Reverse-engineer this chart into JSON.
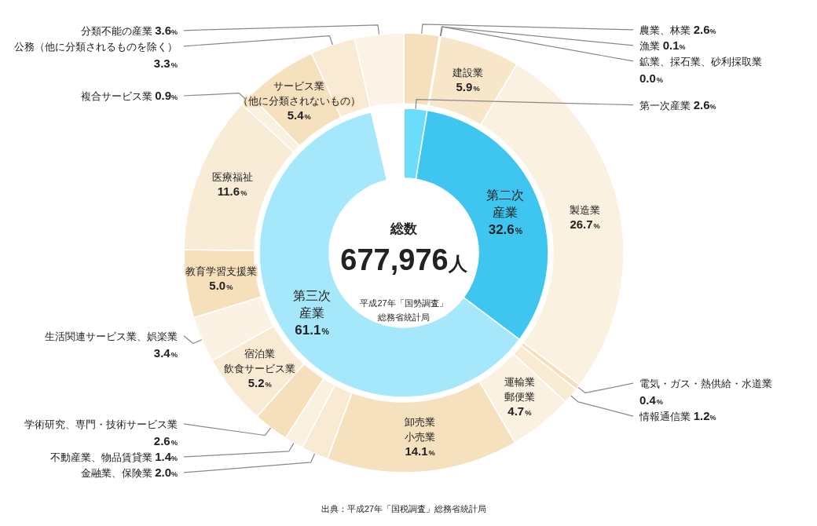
{
  "chart_data": [
    {
      "type": "donut",
      "title": "総数",
      "categories": [
        "第一次産業",
        "第二次産業",
        "第三次産業",
        null
      ],
      "values": [
        2.6,
        32.6,
        61.1,
        3.6
      ],
      "value_labels": [
        "2.6%",
        "32.6%",
        "61.1%",
        null
      ],
      "colors": [
        "#6cdcfb",
        "#3ec5f0",
        "#a6e8fb",
        "#ffffff"
      ],
      "annotations": [
        "677,976人",
        "平成27年「国勢調査」総務省統計局",
        "出典：平成27年「国税調査」総務省統計局"
      ]
    },
    {
      "type": "donut",
      "categories": [
        "農業、林業",
        "漁業",
        "鉱業、採石業、砂利採取業",
        "建設業",
        "製造業",
        "電気・ガス・熱供給・水道業",
        "情報通信業",
        "運輸業郵便業",
        "卸売業小売業",
        "金融業、保険業",
        "不動産業、物品賃貸業",
        "学術研究、専門・技術サービス業",
        "宿泊業飲食サービス業",
        "生活関連サービス業、娯楽業",
        "教育学習支援業",
        "医療福祉",
        "複合サービス業",
        "サービス業（他に分類されないもの）",
        "公務（他に分類されるものを除く）",
        "分類不能の産業"
      ],
      "values": [
        2.6,
        0.1,
        0.0,
        5.9,
        26.7,
        0.4,
        1.2,
        4.7,
        14.1,
        2.0,
        1.4,
        2.6,
        5.2,
        3.4,
        5.0,
        11.6,
        0.9,
        5.4,
        3.3,
        3.6
      ],
      "value_labels": [
        "2.6%",
        "0.1%",
        "0.0%",
        "5.9%",
        "26.7%",
        "0.4%",
        "1.2%",
        "4.7%",
        "14.1%",
        "2.0%",
        "1.4%",
        "2.6%",
        "5.2%",
        "3.4%",
        "5.0%",
        "11.6%",
        "0.9%",
        "5.4%",
        "3.3%",
        "3.6%"
      ],
      "colors": [
        "#f6e0bb",
        "#f8e8cc",
        "#f8e8cc",
        "#f7e6c8",
        "#fbf1e0",
        "#f6e0bb",
        "#f9ebd3",
        "#fbf1e0",
        "#f6e1bf",
        "#f9ebd3",
        "#fbf1e0",
        "#f6e0bb",
        "#f9ebd3",
        "#fbf2e3",
        "#f6e0bb",
        "#f9ecd6",
        "#fbf1e0",
        "#f6e1bf",
        "#f9ebd3",
        "#fcf3e6"
      ]
    }
  ]
}
